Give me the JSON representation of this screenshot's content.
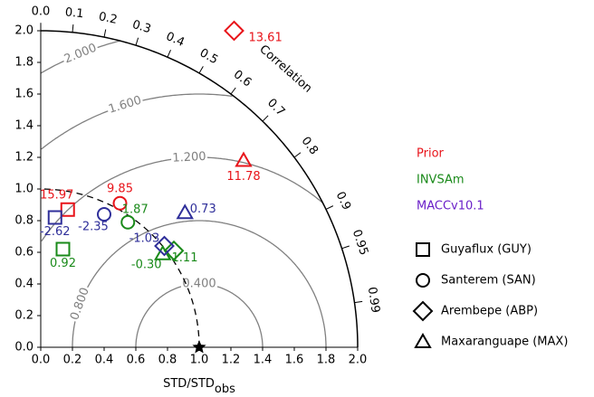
{
  "chart_data": {
    "type": "taylor",
    "xlabel": "STD/STD",
    "xlabel_sub": "obs",
    "correlation_label": "Correlation",
    "xlim": [
      0,
      2
    ],
    "ylim": [
      0,
      2
    ],
    "xticks": [
      {
        "value": 0,
        "label": "0.0"
      },
      0.2,
      0.4,
      0.6,
      0.8,
      {
        "value": 1,
        "label": "1.0"
      },
      1.2,
      1.4,
      1.6,
      1.8,
      {
        "value": 2,
        "label": "2.0"
      }
    ],
    "yticks": [
      {
        "value": 0,
        "label": "0.0"
      },
      0.2,
      0.4,
      0.6,
      0.8,
      {
        "value": 1,
        "label": "1.0"
      },
      1.2,
      1.4,
      1.6,
      1.8,
      {
        "value": 2,
        "label": "2.0"
      }
    ],
    "correlation_ticks": [
      {
        "value": 0,
        "label": "0.0"
      },
      0.1,
      0.2,
      0.3,
      0.4,
      0.5,
      0.6,
      0.7,
      0.8,
      0.9,
      0.95,
      0.99
    ],
    "rms_ticks": [
      {
        "value": 0.4,
        "label": "0.400"
      },
      {
        "value": 0.8,
        "label": "0.800"
      },
      {
        "value": 1.2,
        "label": "1.200"
      },
      {
        "value": 1.6,
        "label": "1.600"
      },
      {
        "value": 2.0,
        "label": "2.000"
      }
    ],
    "reference": {
      "x": 1.0,
      "y": 0
    },
    "sites": [
      {
        "name": "Guyaflux (GUY)",
        "marker": "square"
      },
      {
        "name": "Santerem (SAN)",
        "marker": "circle"
      },
      {
        "name": "Arembepe (ABP)",
        "marker": "diamond"
      },
      {
        "name": "Maxaranguape (MAX)",
        "marker": "triangle"
      }
    ],
    "series": [
      {
        "name": "Prior",
        "color": "#e8141a",
        "x": [
          0.17,
          0.5,
          1.22,
          1.28
        ],
        "y": [
          0.87,
          0.91,
          2.0,
          1.18
        ],
        "labels": [
          15.97,
          9.85,
          13.61,
          11.78
        ]
      },
      {
        "name": "INVSAm",
        "color": "#1a8a1a",
        "x": [
          0.14,
          0.55,
          0.84,
          0.77
        ],
        "y": [
          0.62,
          0.79,
          0.61,
          0.59
        ],
        "labels": [
          0.92,
          1.87,
          1.11,
          -0.3
        ],
        "value_labels": [
          "0.92",
          "1.87",
          "1.11",
          "-0.30"
        ]
      },
      {
        "name": "MACCv10.1",
        "color": "#2f2f9a",
        "x": [
          0.09,
          0.4,
          0.78,
          0.91
        ],
        "y": [
          0.82,
          0.84,
          0.64,
          0.85
        ],
        "labels": [
          -2.62,
          -2.35,
          -1.03,
          0.73
        ]
      }
    ]
  }
}
